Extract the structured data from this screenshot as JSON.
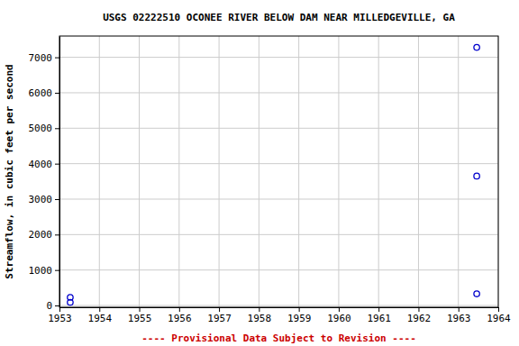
{
  "chart_data": {
    "type": "scatter",
    "title": "USGS 02222510 OCONEE RIVER BELOW DAM NEAR MILLEDGEVILLE, GA",
    "subtitle": "---- Provisional Data Subject to Revision ----",
    "y_label": "Streamflow, in cubic feet per second",
    "x": [
      1953.27,
      1953.27,
      1963.46,
      1963.46,
      1963.46
    ],
    "values": [
      230,
      90,
      7280,
      3650,
      330
    ],
    "color": "#0000cc",
    "marker": "circle-open",
    "xlim": [
      1953,
      1964
    ],
    "xticks": [
      1953,
      1954,
      1955,
      1956,
      1957,
      1958,
      1959,
      1960,
      1961,
      1962,
      1963,
      1964
    ],
    "ylim": [
      -50,
      7600
    ],
    "yticks": [
      0,
      1000,
      2000,
      3000,
      4000,
      5000,
      6000,
      7000
    ],
    "grid": true
  }
}
